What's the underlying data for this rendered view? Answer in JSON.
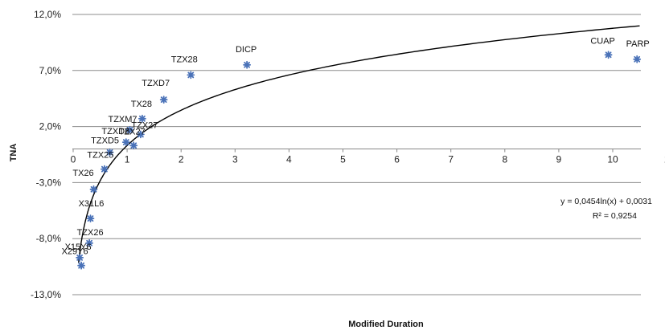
{
  "chart_data": {
    "type": "scatter",
    "xlabel": "Modified Duration",
    "ylabel": "TNA",
    "xlim": [
      0,
      11
    ],
    "ylim": [
      -13.0,
      12.0
    ],
    "x_ticks": [
      "0",
      "1",
      "2",
      "3",
      "4",
      "5",
      "6",
      "7",
      "8",
      "9",
      "10",
      "1"
    ],
    "y_ticks": [
      "12,0%",
      "7,0%",
      "2,0%",
      "-3,0%",
      "-8,0%",
      "-13,0%"
    ],
    "y_tick_values": [
      12,
      7,
      2,
      -3,
      -8,
      -13
    ],
    "grid": "horizontal",
    "marker_color": "#4a72b8",
    "trendline_color": "#000000",
    "points": [
      {
        "label": "X29Y6",
        "x": 0.15,
        "y": -10.4
      },
      {
        "label": "X15Y6",
        "x": 0.12,
        "y": -9.7
      },
      {
        "label": "TZX26",
        "x": 0.3,
        "y": -8.4
      },
      {
        "label": "X31L6",
        "x": 0.32,
        "y": -6.2
      },
      {
        "label": "TX26",
        "x": 0.38,
        "y": -3.6
      },
      {
        "label": "TZX25",
        "x": 0.58,
        "y": -1.8
      },
      {
        "label": "TZXD5",
        "x": 0.68,
        "y": -0.3
      },
      {
        "label": "TZXD6",
        "x": 0.98,
        "y": 0.6
      },
      {
        "label": "TZX27",
        "x": 1.12,
        "y": 0.3
      },
      {
        "label": "TZXM7",
        "x": 1.05,
        "y": 1.7
      },
      {
        "label": "TZX27",
        "x": 1.25,
        "y": 1.3
      },
      {
        "label": "TX28",
        "x": 1.28,
        "y": 2.7
      },
      {
        "label": "TZXD7",
        "x": 1.68,
        "y": 4.4
      },
      {
        "label": "TZX28",
        "x": 2.18,
        "y": 6.6
      },
      {
        "label": "DICP",
        "x": 3.22,
        "y": 7.5
      },
      {
        "label": "CUAP",
        "x": 9.92,
        "y": 8.4
      },
      {
        "label": "PARP",
        "x": 10.45,
        "y": 8.0
      }
    ],
    "trendline": {
      "a": 4.54,
      "b": 0.31,
      "x_start": 0.1,
      "x_end": 10.5
    },
    "equation": "y = 0,0454ln(x) + 0,0031",
    "r_squared": "R² = 0,9254"
  }
}
